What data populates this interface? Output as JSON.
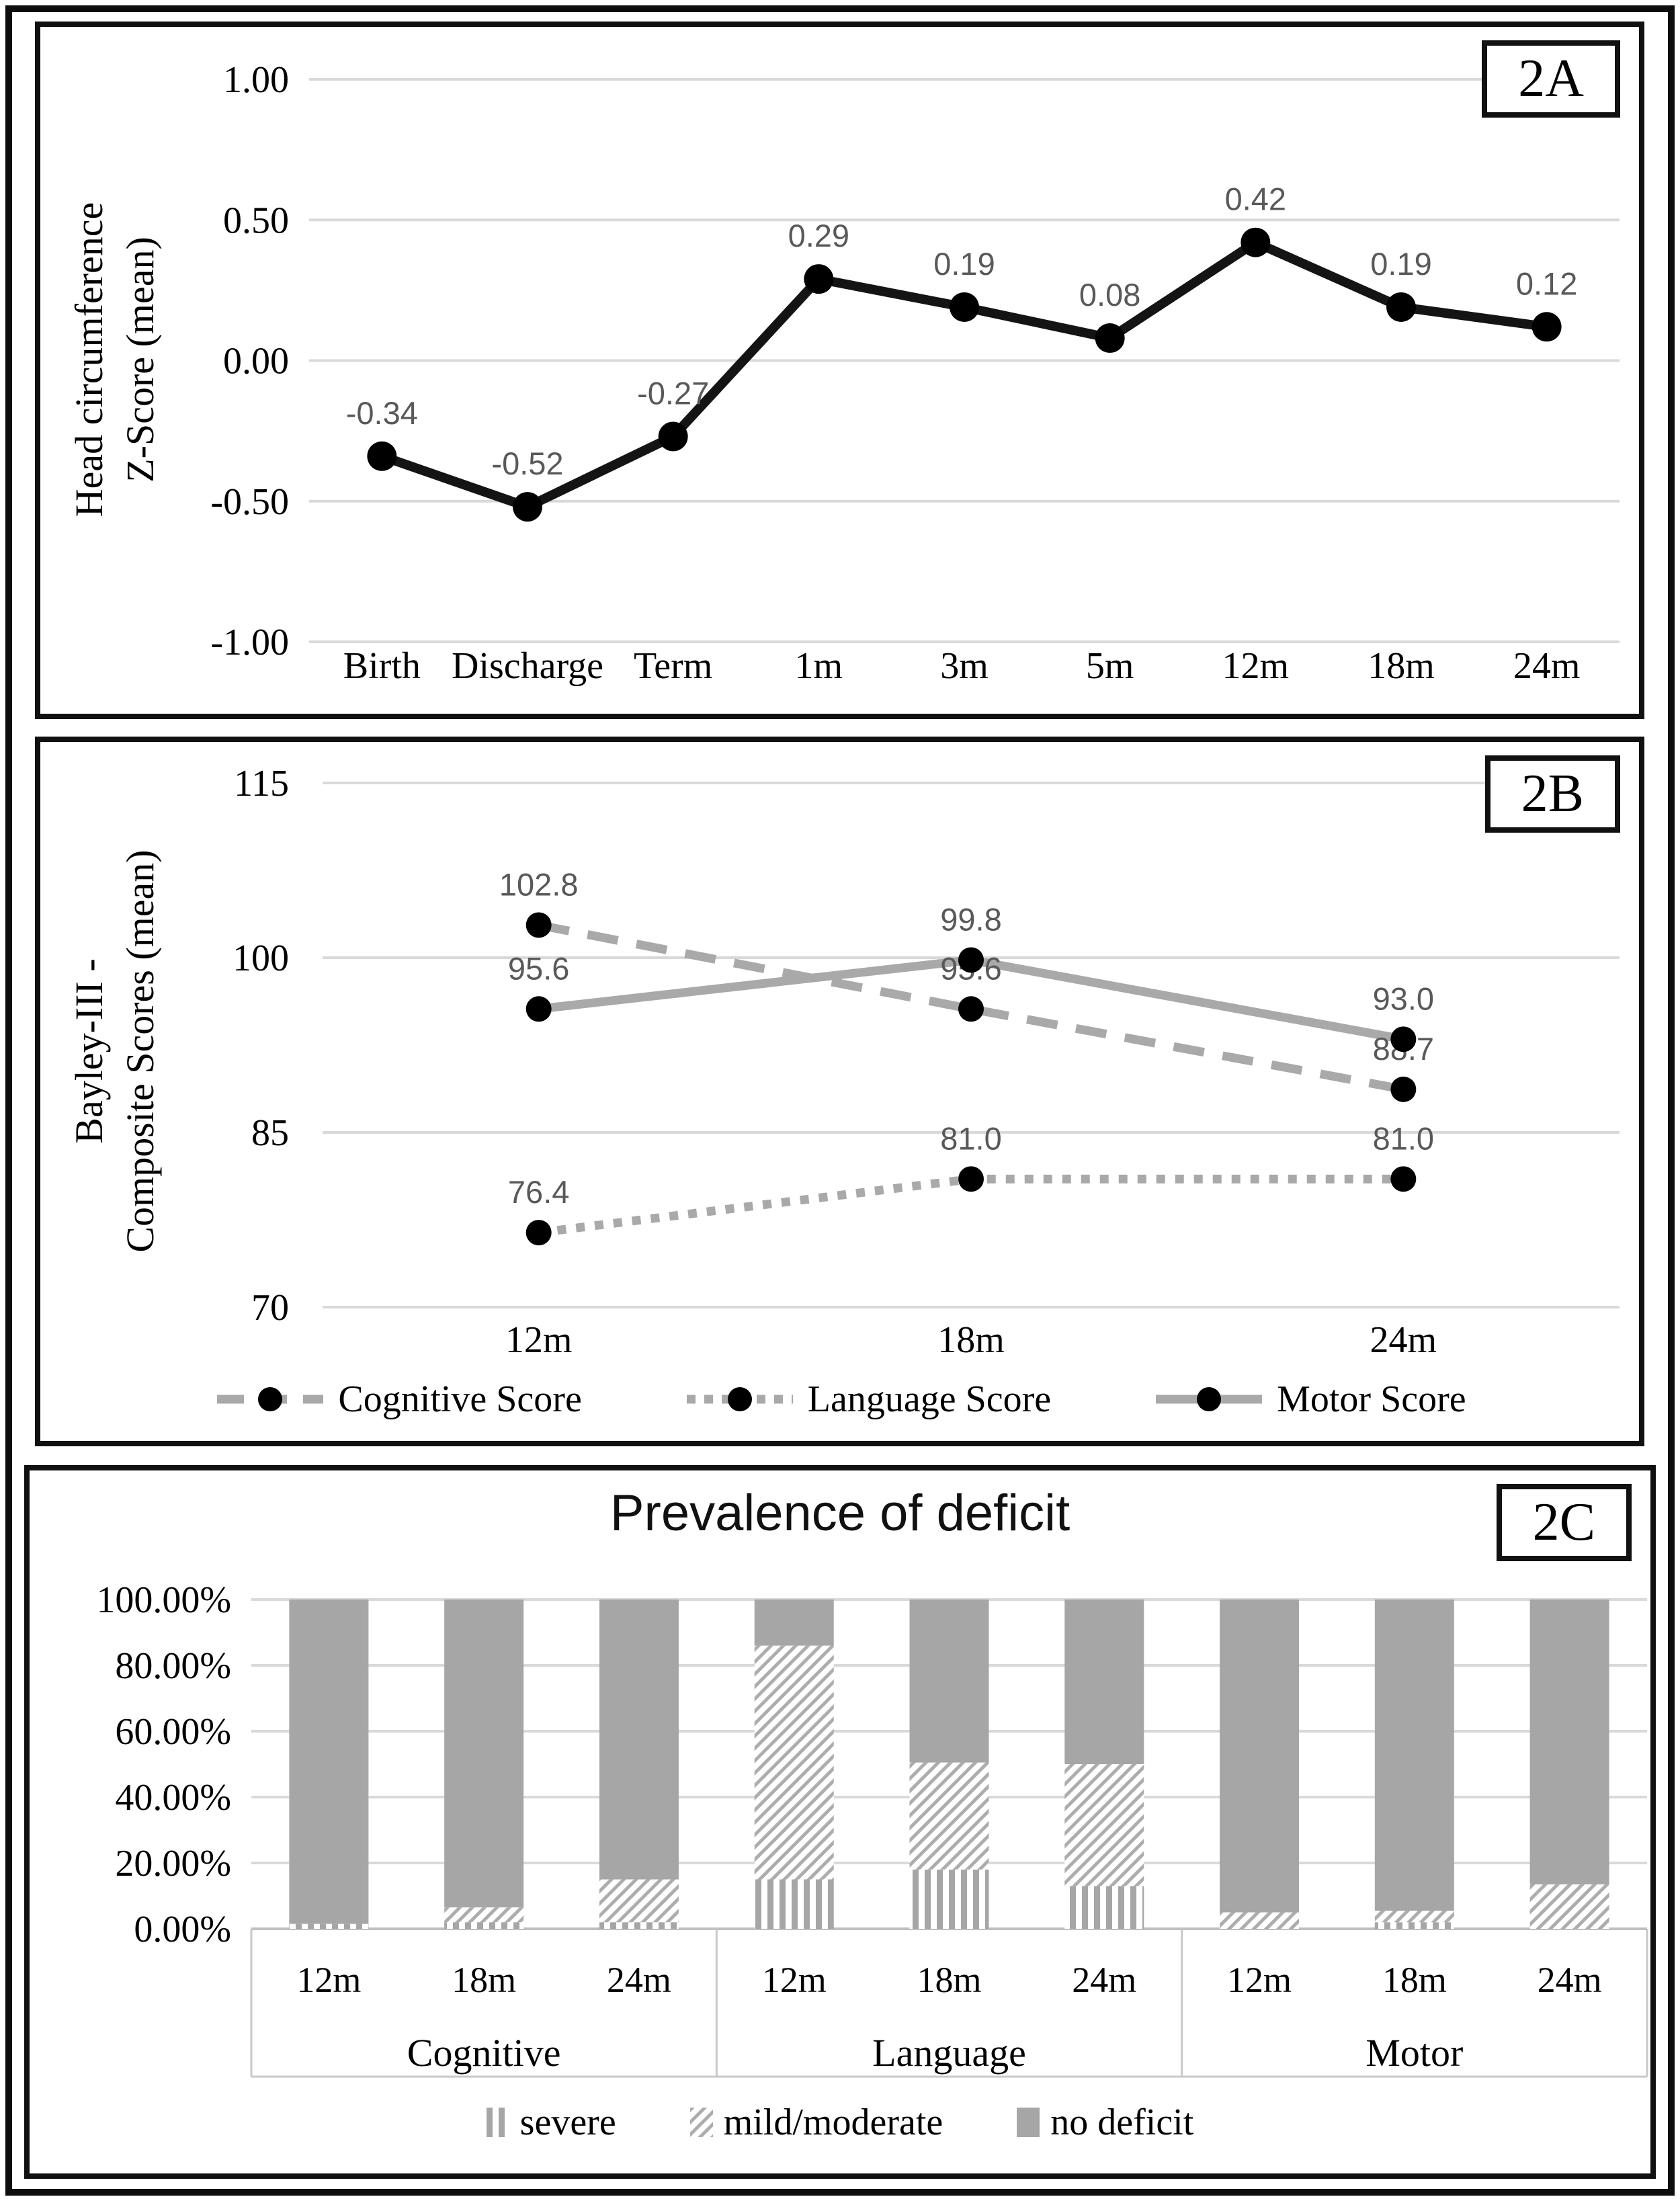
{
  "figure": {
    "background": "#ffffff",
    "frame_color": "#0d0d0d"
  },
  "chart_data": [
    {
      "type": "line",
      "panel_tag": "2A",
      "ylabel_lines": [
        "Head circumference",
        "Z-Score (mean)"
      ],
      "categories": [
        "Birth",
        "Discharge",
        "Term",
        "1m",
        "3m",
        "5m",
        "12m",
        "18m",
        "24m"
      ],
      "values": [
        -0.34,
        -0.52,
        -0.27,
        0.29,
        0.19,
        0.08,
        0.42,
        0.19,
        0.12
      ],
      "labels": [
        "-0.34",
        "-0.52",
        "-0.27",
        "0.29",
        "0.19",
        "0.08",
        "0.42",
        "0.19",
        "0.12"
      ],
      "ylim": [
        -1.0,
        1.0
      ],
      "yticks": [
        {
          "v": 1.0,
          "label": "1.00"
        },
        {
          "v": 0.5,
          "label": "0.50"
        },
        {
          "v": 0.0,
          "label": "0.00"
        },
        {
          "v": -0.5,
          "label": "-0.50"
        },
        {
          "v": -1.0,
          "label": "-1.00"
        }
      ],
      "grid": true,
      "line_color": "#141414",
      "marker_color": "#000000",
      "label_color": "#595959",
      "grid_color": "#d9d9d9"
    },
    {
      "type": "line",
      "panel_tag": "2B",
      "ylabel_lines": [
        "Bayley-III -",
        "Composite Scores (mean)"
      ],
      "categories": [
        "12m",
        "18m",
        "24m"
      ],
      "series": [
        {
          "name": "Cognitive Score",
          "line_style": "dashed",
          "color": "#a9a9a9",
          "values": [
            102.8,
            95.6,
            88.7
          ],
          "labels": [
            "102.8",
            "95.6",
            "88.7"
          ]
        },
        {
          "name": "Language Score",
          "line_style": "dotted",
          "color": "#a9a9a9",
          "values": [
            76.4,
            81.0,
            81.0
          ],
          "labels": [
            "76.4",
            "81.0",
            "81.0"
          ]
        },
        {
          "name": "Motor Score",
          "line_style": "solid",
          "color": "#a9a9a9",
          "values": [
            95.6,
            99.8,
            93.0
          ],
          "labels": [
            "95.6",
            "99.8",
            "93.0"
          ]
        }
      ],
      "ylim": [
        70,
        115
      ],
      "yticks": [
        {
          "v": 115,
          "label": "115"
        },
        {
          "v": 100,
          "label": "100"
        },
        {
          "v": 85,
          "label": "85"
        },
        {
          "v": 70,
          "label": "70"
        }
      ],
      "grid": true,
      "marker_color": "#000000",
      "label_color": "#595959",
      "grid_color": "#d9d9d9",
      "legend_position": "bottom"
    },
    {
      "type": "stacked_bar",
      "panel_tag": "2C",
      "title": "Prevalence of deficit",
      "unit": "percent",
      "ylim": [
        0,
        100
      ],
      "yticks": [
        {
          "v": 100,
          "label": "100.00%"
        },
        {
          "v": 80,
          "label": "80.00%"
        },
        {
          "v": 60,
          "label": "60.00%"
        },
        {
          "v": 40,
          "label": "40.00%"
        },
        {
          "v": 20,
          "label": "20.00%"
        },
        {
          "v": 0,
          "label": "0.00%"
        }
      ],
      "series_order": [
        "severe",
        "mild/moderate",
        "no deficit"
      ],
      "groups": [
        {
          "name": "Cognitive",
          "bars": [
            {
              "label": "12m",
              "severe": 1.5,
              "mild_moderate": 0,
              "no_deficit": 98.5
            },
            {
              "label": "18m",
              "severe": 2,
              "mild_moderate": 4.5,
              "no_deficit": 93.5
            },
            {
              "label": "24m",
              "severe": 2,
              "mild_moderate": 13,
              "no_deficit": 85
            }
          ]
        },
        {
          "name": "Language",
          "bars": [
            {
              "label": "12m",
              "severe": 15,
              "mild_moderate": 71,
              "no_deficit": 14
            },
            {
              "label": "18m",
              "severe": 18,
              "mild_moderate": 32.5,
              "no_deficit": 49.5
            },
            {
              "label": "24m",
              "severe": 13,
              "mild_moderate": 37,
              "no_deficit": 50
            }
          ]
        },
        {
          "name": "Motor",
          "bars": [
            {
              "label": "12m",
              "severe": 0,
              "mild_moderate": 5,
              "no_deficit": 95
            },
            {
              "label": "18m",
              "severe": 2,
              "mild_moderate": 3.5,
              "no_deficit": 94.5
            },
            {
              "label": "24m",
              "severe": 0,
              "mild_moderate": 13.5,
              "no_deficit": 86.5
            }
          ]
        }
      ],
      "legend": [
        "severe",
        "mild/moderate",
        "no deficit"
      ],
      "bar_color": "#a6a6a6",
      "stripe_color": "#a6a6a6",
      "grid_color": "#d9d9d9",
      "axis_color": "#bfbfbf",
      "table_line_color": "#c9c9c9",
      "legend_position": "bottom"
    }
  ]
}
